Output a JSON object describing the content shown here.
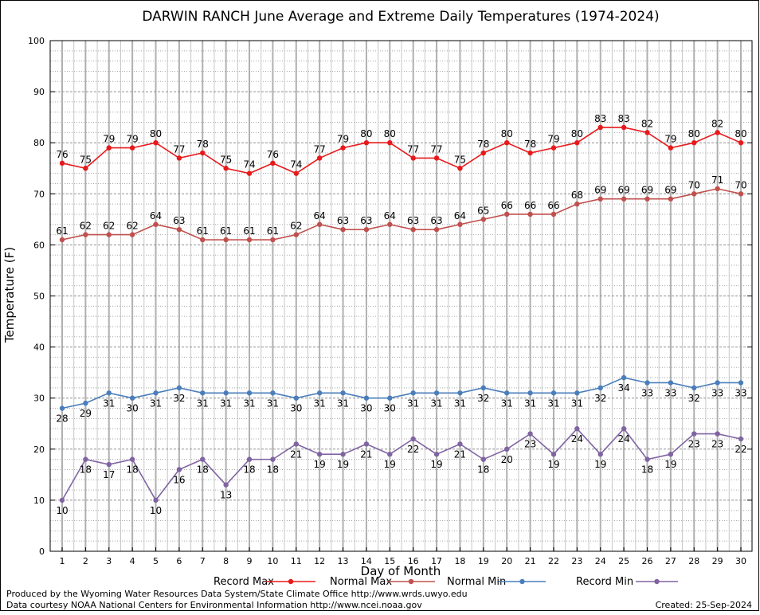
{
  "chart_data": {
    "type": "line",
    "title": "DARWIN RANCH June Average and Extreme Daily Temperatures (1974-2024)",
    "xlabel": "Day of Month",
    "ylabel": "Temperature (F)",
    "ylim": [
      0,
      100
    ],
    "yticks": [
      0,
      10,
      20,
      30,
      40,
      50,
      60,
      70,
      80,
      90,
      100
    ],
    "x": [
      1,
      2,
      3,
      4,
      5,
      6,
      7,
      8,
      9,
      10,
      11,
      12,
      13,
      14,
      15,
      16,
      17,
      18,
      19,
      20,
      21,
      22,
      23,
      24,
      25,
      26,
      27,
      28,
      29,
      30
    ],
    "grid": true,
    "legend_position": "bottom",
    "series": [
      {
        "name": "Record Max",
        "color": "#e8191b",
        "values": [
          76,
          75,
          79,
          79,
          80,
          77,
          78,
          75,
          74,
          76,
          74,
          77,
          79,
          80,
          80,
          77,
          77,
          75,
          78,
          80,
          78,
          79,
          80,
          83,
          83,
          82,
          79,
          80,
          82,
          80
        ]
      },
      {
        "name": "Normal Max",
        "color": "#c0504d",
        "values": [
          61,
          62,
          62,
          62,
          64,
          63,
          61,
          61,
          61,
          61,
          62,
          64,
          63,
          63,
          64,
          63,
          63,
          64,
          65,
          66,
          66,
          66,
          68,
          69,
          69,
          69,
          69,
          70,
          71,
          70
        ]
      },
      {
        "name": "Normal Min",
        "color": "#4a7ebb",
        "values": [
          28,
          29,
          31,
          30,
          31,
          32,
          31,
          31,
          31,
          31,
          30,
          31,
          31,
          30,
          30,
          31,
          31,
          31,
          32,
          31,
          31,
          31,
          31,
          32,
          34,
          33,
          33,
          32,
          33,
          33
        ]
      },
      {
        "name": "Record Min",
        "color": "#8064a2",
        "values": [
          10,
          18,
          17,
          18,
          10,
          16,
          18,
          13,
          18,
          18,
          21,
          19,
          19,
          21,
          19,
          22,
          19,
          21,
          18,
          20,
          23,
          19,
          24,
          19,
          24,
          18,
          19,
          23,
          23,
          22
        ]
      }
    ]
  },
  "footer": {
    "producer": "Produced by the Wyoming Water Resources Data System/State Climate Office http://www.wrds.uwyo.edu",
    "courtesy": "Data courtesy NOAA National Centers for Environmental Information http://www.ncei.noaa.gov",
    "created": "Created:  25-Sep-2024"
  }
}
